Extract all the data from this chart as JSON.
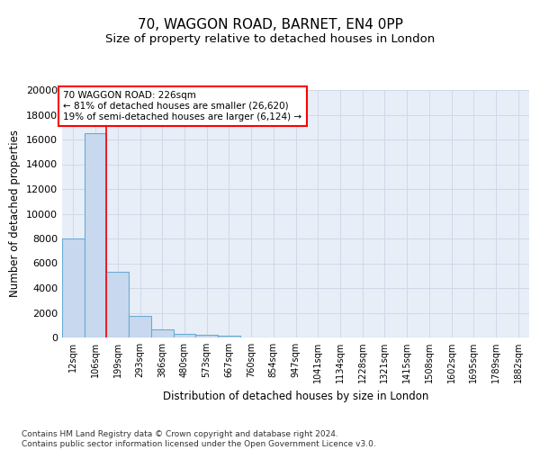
{
  "title_line1": "70, WAGGON ROAD, BARNET, EN4 0PP",
  "title_line2": "Size of property relative to detached houses in London",
  "xlabel": "Distribution of detached houses by size in London",
  "ylabel": "Number of detached properties",
  "bin_labels": [
    "12sqm",
    "106sqm",
    "199sqm",
    "293sqm",
    "386sqm",
    "480sqm",
    "573sqm",
    "667sqm",
    "760sqm",
    "854sqm",
    "947sqm",
    "1041sqm",
    "1134sqm",
    "1228sqm",
    "1321sqm",
    "1415sqm",
    "1508sqm",
    "1602sqm",
    "1695sqm",
    "1789sqm",
    "1882sqm"
  ],
  "bar_heights": [
    8000,
    16500,
    5300,
    1750,
    620,
    290,
    190,
    120,
    0,
    0,
    0,
    0,
    0,
    0,
    0,
    0,
    0,
    0,
    0,
    0,
    0
  ],
  "bar_color": "#c8d9ef",
  "bar_edgecolor": "#6aaad4",
  "bar_linewidth": 0.8,
  "vline_x": 1.5,
  "vline_color": "red",
  "vline_linewidth": 1.2,
  "annotation_text": "70 WAGGON ROAD: 226sqm\n← 81% of detached houses are smaller (26,620)\n19% of semi-detached houses are larger (6,124) →",
  "annotation_box_color": "white",
  "annotation_box_edgecolor": "red",
  "ylim": [
    0,
    20000
  ],
  "yticks": [
    0,
    2000,
    4000,
    6000,
    8000,
    10000,
    12000,
    14000,
    16000,
    18000,
    20000
  ],
  "grid_color": "#d0d8e8",
  "background_color": "#e8eef8",
  "footer_text": "Contains HM Land Registry data © Crown copyright and database right 2024.\nContains public sector information licensed under the Open Government Licence v3.0.",
  "title_fontsize": 11,
  "subtitle_fontsize": 9.5,
  "label_fontsize": 8.5,
  "tick_fontsize": 7,
  "annot_fontsize": 7.5,
  "footer_fontsize": 6.5
}
